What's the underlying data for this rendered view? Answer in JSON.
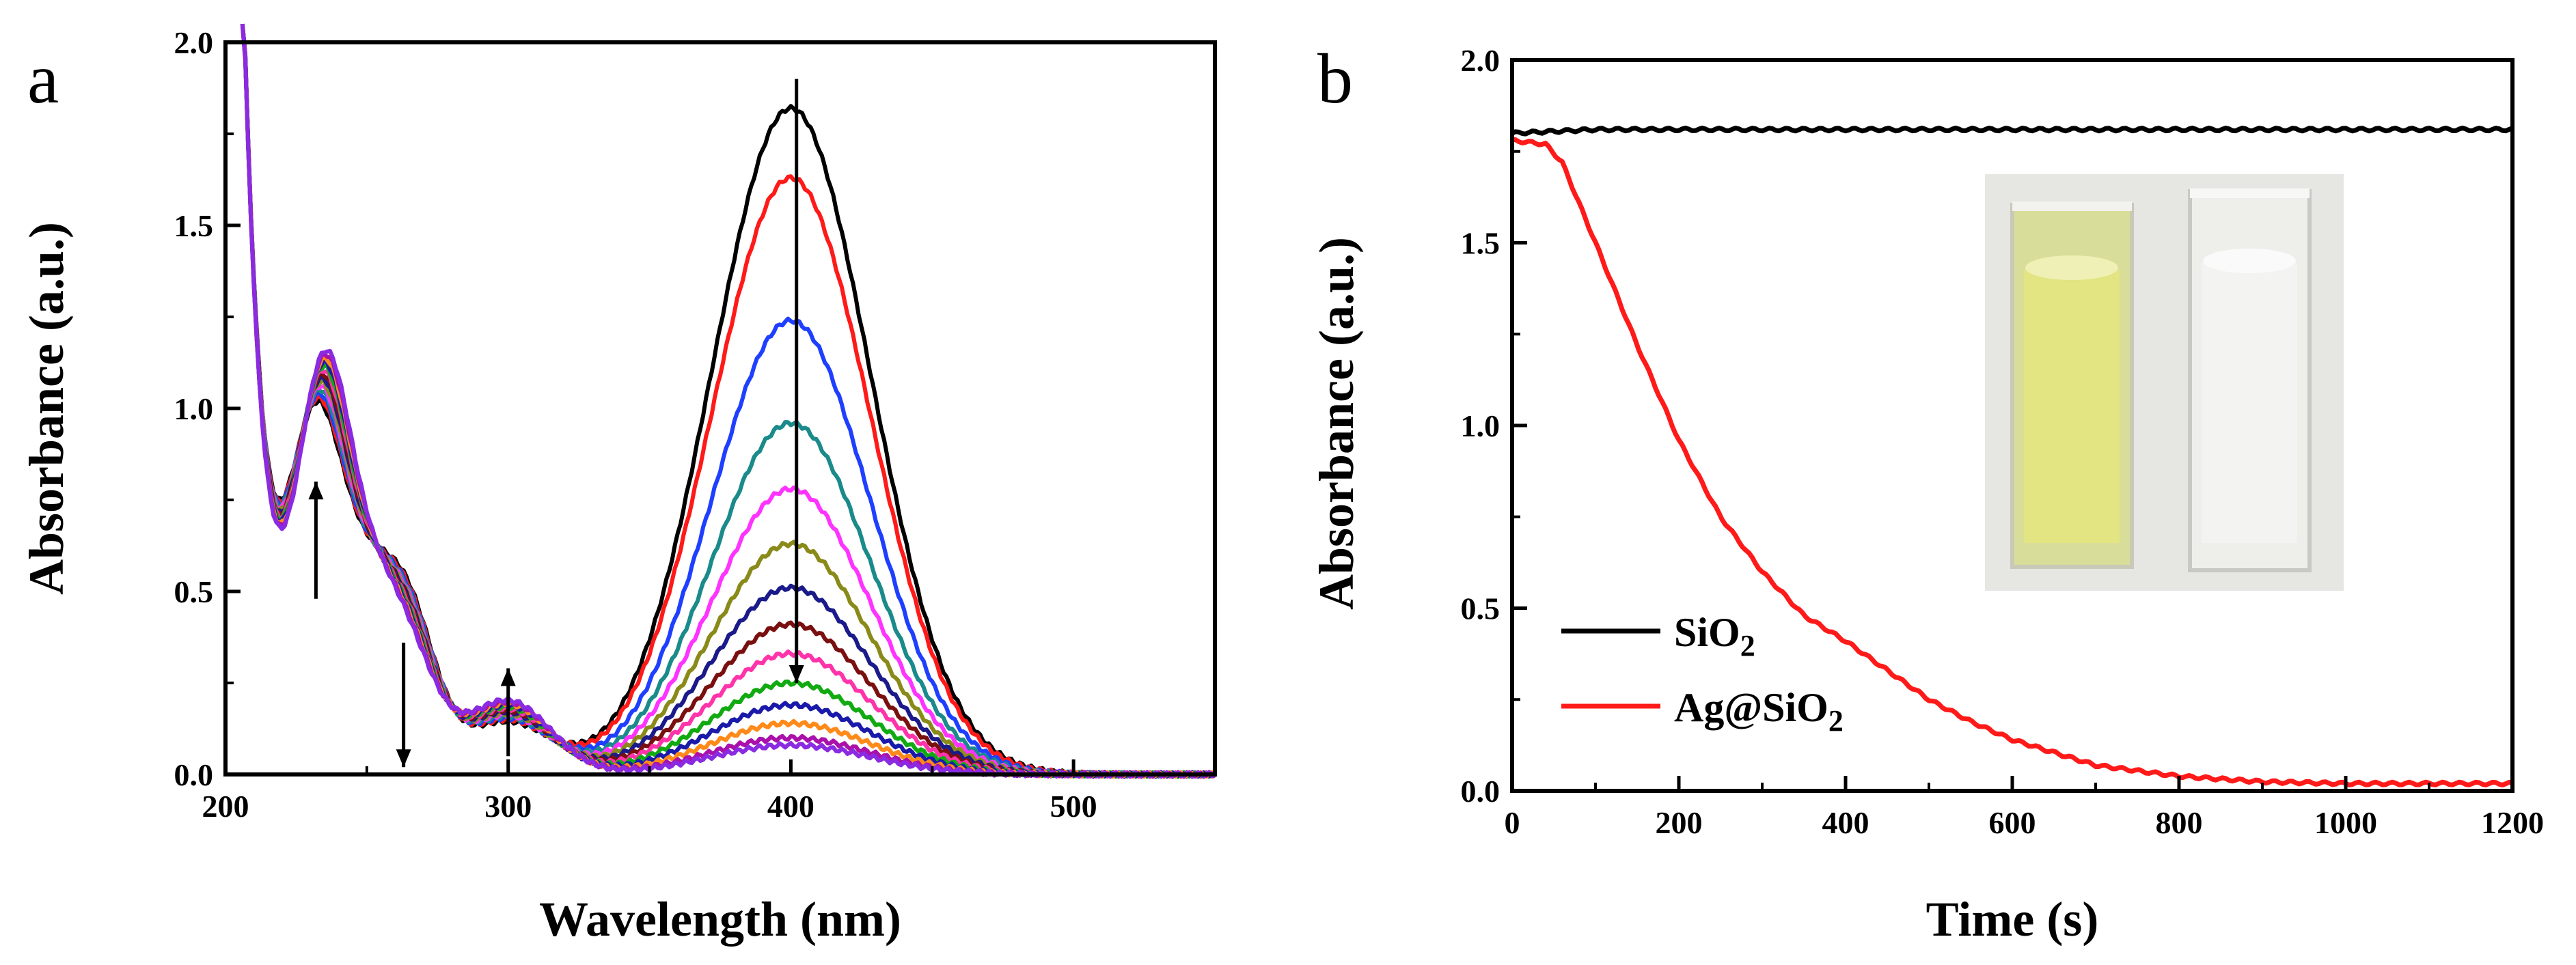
{
  "panels": [
    {
      "label": "a",
      "chart_data": {
        "type": "line",
        "xlabel": "Wavelength (nm)",
        "ylabel": "Absorbance (a.u.)",
        "xlim": [
          200,
          550
        ],
        "ylim": [
          0,
          2.0
        ],
        "xticks": [
          "200",
          "300",
          "400",
          "500"
        ],
        "yticks": [
          "0.0",
          "0.5",
          "1.0",
          "1.5",
          "2.0"
        ],
        "series_description": "UV-vis spectra recorded at successive times; 4-nitrophenolate peak near 400 nm decreases over time",
        "peak_wavelength_nm": 400,
        "peak_absorbance_series": [
          1.82,
          1.63,
          1.24,
          0.96,
          0.78,
          0.63,
          0.51,
          0.41,
          0.33,
          0.25,
          0.19,
          0.14,
          0.1,
          0.08
        ],
        "series_colors": [
          "#000000",
          "#ff1a1a",
          "#1f3fff",
          "#1a8a8a",
          "#ff33ff",
          "#8a8a1a",
          "#1a1a8a",
          "#7a0f0f",
          "#ff33aa",
          "#11aa11",
          "#1a1aaa",
          "#ff8a1a",
          "#aa11aa",
          "#8a2be2"
        ],
        "arrows": [
          {
            "x_nm": 232,
            "direction": "up"
          },
          {
            "x_nm": 263,
            "direction": "down"
          },
          {
            "x_nm": 300,
            "direction": "up"
          },
          {
            "x_nm": 402,
            "direction": "down"
          }
        ]
      }
    },
    {
      "label": "b",
      "chart_data": {
        "type": "line",
        "xlabel": "Time (s)",
        "ylabel": "Absorbance (a.u.)",
        "xlim": [
          0,
          1200
        ],
        "ylim": [
          0,
          2.0
        ],
        "xticks": [
          "0",
          "200",
          "400",
          "600",
          "800",
          "1000",
          "1200"
        ],
        "yticks": [
          "0.0",
          "0.5",
          "1.0",
          "1.5",
          "2.0"
        ],
        "series": [
          {
            "name": "SiO",
            "subscript": "2",
            "color": "#000000",
            "x": [
              0,
              100,
              200,
              400,
              600,
              800,
              1000,
              1200
            ],
            "y": [
              1.8,
              1.81,
              1.81,
              1.81,
              1.81,
              1.81,
              1.81,
              1.81
            ]
          },
          {
            "name": "Ag@SiO",
            "subscript": "2",
            "color": "#ff1a1a",
            "x": [
              0,
              40,
              60,
              100,
              150,
              200,
              250,
              300,
              350,
              400,
              450,
              500,
              550,
              600,
              700,
              800,
              900,
              1000,
              1100,
              1200
            ],
            "y": [
              1.78,
              1.77,
              1.72,
              1.5,
              1.22,
              0.96,
              0.75,
              0.6,
              0.48,
              0.41,
              0.33,
              0.25,
              0.19,
              0.14,
              0.07,
              0.04,
              0.025,
              0.02,
              0.02,
              0.02
            ]
          }
        ],
        "inset": {
          "description": "photo of two cuvettes: yellow solution (left) and colorless solution (right)"
        }
      }
    }
  ]
}
